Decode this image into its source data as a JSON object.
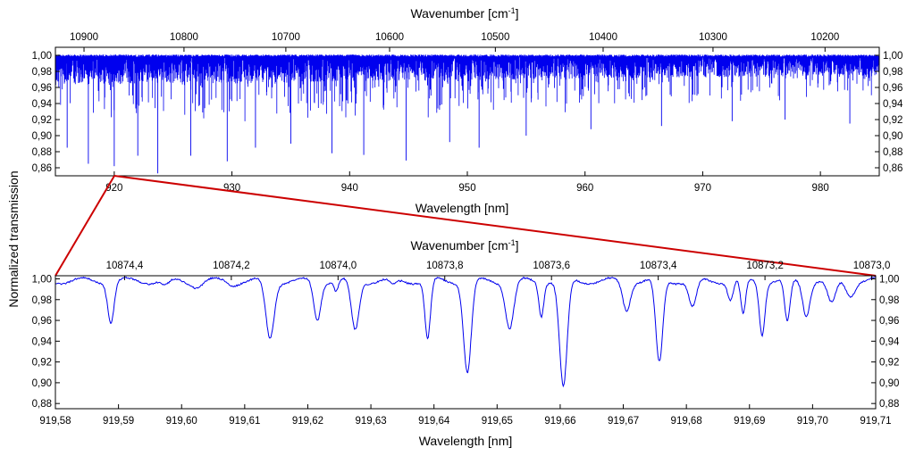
{
  "figure": {
    "ylabel": "Normalized transmission",
    "zoom_line_color": "#cc0000",
    "series_color": "#0000ee"
  },
  "chart_data": [
    {
      "type": "line",
      "panel": "overview",
      "xlabel": "Wavelength [nm]",
      "x2label": "Wavenumber [cm-1]",
      "x2label_base": "Wavenumber [cm",
      "x2label_sup": "-1",
      "x2label_tail": "]",
      "xlim": [
        915,
        985
      ],
      "ylim": [
        0.85,
        1.01
      ],
      "xticks": [
        920,
        930,
        940,
        950,
        960,
        970,
        980
      ],
      "xtick_labels": [
        "920",
        "930",
        "940",
        "950",
        "960",
        "970",
        "980"
      ],
      "x2ticks": [
        10900,
        10800,
        10700,
        10600,
        10500,
        10400,
        10300,
        10200
      ],
      "x2tick_labels": [
        "10900",
        "10800",
        "10700",
        "10600",
        "10500",
        "10400",
        "10300",
        "10200"
      ],
      "yticks": [
        0.86,
        0.88,
        0.9,
        0.92,
        0.94,
        0.96,
        0.98,
        1.0
      ],
      "ytick_labels": [
        "0,86",
        "0,88",
        "0,90",
        "0,92",
        "0,94",
        "0,96",
        "0,98",
        "1,00"
      ],
      "series": [
        {
          "color": "#0000ee",
          "continuum": 0.998,
          "deep_lines": [
            {
              "x": 916.0,
              "y": 0.885
            },
            {
              "x": 917.8,
              "y": 0.865
            },
            {
              "x": 920.0,
              "y": 0.862
            },
            {
              "x": 922.0,
              "y": 0.875
            },
            {
              "x": 923.7,
              "y": 0.853
            },
            {
              "x": 926.5,
              "y": 0.875
            },
            {
              "x": 929.6,
              "y": 0.868
            },
            {
              "x": 932.0,
              "y": 0.885
            },
            {
              "x": 935.0,
              "y": 0.89
            },
            {
              "x": 938.5,
              "y": 0.878
            },
            {
              "x": 941.2,
              "y": 0.876
            },
            {
              "x": 944.8,
              "y": 0.869
            },
            {
              "x": 948.5,
              "y": 0.892
            },
            {
              "x": 951.0,
              "y": 0.885
            },
            {
              "x": 955.0,
              "y": 0.9
            },
            {
              "x": 960.5,
              "y": 0.908
            },
            {
              "x": 966.5,
              "y": 0.912
            },
            {
              "x": 972.5,
              "y": 0.918
            },
            {
              "x": 977.0,
              "y": 0.92
            },
            {
              "x": 982.5,
              "y": 0.915
            }
          ]
        }
      ]
    },
    {
      "type": "line",
      "panel": "zoom",
      "xlabel": "Wavelength [nm]",
      "x2label": "Wavenumber [cm-1]",
      "x2label_base": "Wavenumber [cm",
      "x2label_sup": "-1",
      "x2label_tail": "]",
      "xlim": [
        919.58,
        919.71
      ],
      "ylim": [
        0.875,
        1.003
      ],
      "xticks": [
        919.58,
        919.59,
        919.6,
        919.61,
        919.62,
        919.63,
        919.64,
        919.65,
        919.66,
        919.67,
        919.68,
        919.69,
        919.7,
        919.71
      ],
      "xtick_labels": [
        "919,58",
        "919,59",
        "919,60",
        "919,61",
        "919,62",
        "919,63",
        "919,64",
        "919,65",
        "919,66",
        "919,67",
        "919,68",
        "919,69",
        "919,70",
        "919,71"
      ],
      "x2ticks": [
        10874.4,
        10874.2,
        10874.0,
        10873.8,
        10873.6,
        10873.4,
        10873.2,
        10873.0
      ],
      "x2tick_labels": [
        "10874,4",
        "10874,2",
        "10874,0",
        "10873,8",
        "10873,6",
        "10873,4",
        "10873,2",
        "10873,0"
      ],
      "yticks": [
        0.88,
        0.9,
        0.92,
        0.94,
        0.96,
        0.98,
        1.0
      ],
      "ytick_labels": [
        "0,88",
        "0,90",
        "0,92",
        "0,94",
        "0,96",
        "0,98",
        "1,00"
      ],
      "series": [
        {
          "color": "#0000ee",
          "continuum": 0.998,
          "absorption_lines": [
            {
              "center": 919.5888,
              "min": 0.959,
              "width": 0.0009
            },
            {
              "center": 919.5975,
              "min": 0.9925,
              "width": 0.0012
            },
            {
              "center": 919.6025,
              "min": 0.9935,
              "width": 0.0015
            },
            {
              "center": 919.608,
              "min": 0.995,
              "width": 0.0012
            },
            {
              "center": 919.614,
              "min": 0.943,
              "width": 0.0012
            },
            {
              "center": 919.6215,
              "min": 0.961,
              "width": 0.001
            },
            {
              "center": 919.6245,
              "min": 0.988,
              "width": 0.0006
            },
            {
              "center": 919.6275,
              "min": 0.95,
              "width": 0.0011
            },
            {
              "center": 919.6335,
              "min": 0.992,
              "width": 0.001
            },
            {
              "center": 919.639,
              "min": 0.941,
              "width": 0.0008
            },
            {
              "center": 919.6453,
              "min": 0.91,
              "width": 0.0011
            },
            {
              "center": 919.652,
              "min": 0.953,
              "width": 0.0012
            },
            {
              "center": 919.657,
              "min": 0.966,
              "width": 0.0007
            },
            {
              "center": 919.6605,
              "min": 0.894,
              "width": 0.0011
            },
            {
              "center": 919.6705,
              "min": 0.971,
              "width": 0.0011
            },
            {
              "center": 919.6757,
              "min": 0.918,
              "width": 0.001
            },
            {
              "center": 919.681,
              "min": 0.972,
              "width": 0.0011
            },
            {
              "center": 919.687,
              "min": 0.98,
              "width": 0.0008
            },
            {
              "center": 919.689,
              "min": 0.964,
              "width": 0.0007
            },
            {
              "center": 919.692,
              "min": 0.948,
              "width": 0.0008
            },
            {
              "center": 919.696,
              "min": 0.957,
              "width": 0.0008
            },
            {
              "center": 919.699,
              "min": 0.966,
              "width": 0.001
            },
            {
              "center": 919.703,
              "min": 0.975,
              "width": 0.0012
            },
            {
              "center": 919.706,
              "min": 0.985,
              "width": 0.0012
            }
          ]
        }
      ]
    }
  ]
}
